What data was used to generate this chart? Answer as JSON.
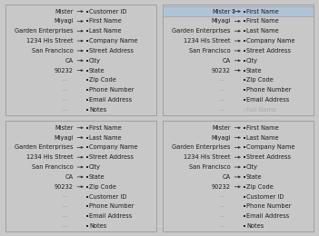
{
  "bg_color": "#c8c8c8",
  "panel_bg": "#ffffff",
  "panel_border": "#999999",
  "panels": [
    {
      "id": "top_left",
      "highlight_row": null,
      "left_fields": [
        "Mister",
        "Miyagi",
        "Garden Enterprises",
        "1234 His Street",
        "San Francisco",
        "CA",
        "90232",
        "—",
        "—",
        "—",
        "—"
      ],
      "left_active": [
        true,
        true,
        true,
        true,
        true,
        true,
        true,
        false,
        false,
        false,
        false
      ],
      "right_fields": [
        "Customer ID",
        "First Name",
        "Last Name",
        "Company Name",
        "Street Address",
        "City",
        "State",
        "Zip Code",
        "Phone Number",
        "Email Address",
        "Notes"
      ],
      "right_active": [
        true,
        true,
        true,
        true,
        true,
        true,
        true,
        true,
        true,
        true,
        true
      ],
      "arrows": [
        true,
        true,
        true,
        true,
        true,
        true,
        true,
        false,
        false,
        false,
        false
      ]
    },
    {
      "id": "top_right",
      "highlight_row": 0,
      "left_fields": [
        "Mister",
        "Miyagi",
        "Garden Enterprises",
        "1234 His Street",
        "San Francisco",
        "CA",
        "90232",
        "—",
        "—",
        "—",
        "—"
      ],
      "left_active": [
        true,
        true,
        true,
        true,
        true,
        true,
        true,
        false,
        false,
        false,
        false
      ],
      "right_fields": [
        "First Name",
        "First Name",
        "Last Name",
        "Company Name",
        "Street Address",
        "City",
        "State",
        "Zip Code",
        "Phone Number",
        "Email Address",
        "Full Name"
      ],
      "right_active": [
        true,
        true,
        true,
        true,
        true,
        true,
        true,
        true,
        true,
        true,
        false
      ],
      "arrows": [
        true,
        true,
        true,
        true,
        true,
        true,
        true,
        false,
        false,
        false,
        false
      ]
    },
    {
      "id": "bottom_left",
      "highlight_row": null,
      "left_fields": [
        "Mister",
        "Miyagi",
        "Garden Enterprises",
        "1234 His Street",
        "San Francisco",
        "CA",
        "90232",
        "—",
        "—",
        "—",
        "—"
      ],
      "left_active": [
        true,
        true,
        true,
        true,
        true,
        true,
        true,
        false,
        false,
        false,
        false
      ],
      "right_fields": [
        "First Name",
        "Last Name",
        "Company Name",
        "Street Address",
        "City",
        "State",
        "Zip Code",
        "Customer ID",
        "Phone Number",
        "Email Address",
        "Notes"
      ],
      "right_active": [
        true,
        true,
        true,
        true,
        true,
        true,
        true,
        true,
        true,
        true,
        true
      ],
      "arrows": [
        true,
        true,
        true,
        true,
        true,
        true,
        false,
        false,
        false,
        false,
        false
      ]
    },
    {
      "id": "bottom_right",
      "highlight_row": null,
      "left_fields": [
        "Mister",
        "Miyagi",
        "Garden Enterprises",
        "1234 His Street",
        "San Francisco",
        "CA",
        "90232",
        "—",
        "—",
        "—",
        "—"
      ],
      "left_active": [
        true,
        true,
        true,
        true,
        true,
        true,
        true,
        false,
        false,
        false,
        false
      ],
      "right_fields": [
        "First Name",
        "Last Name",
        "Company Name",
        "Street Address",
        "City",
        "State",
        "Zip Code",
        "Customer ID",
        "Phone Number",
        "Email Address",
        "Notes"
      ],
      "right_active": [
        true,
        true,
        true,
        true,
        true,
        true,
        true,
        true,
        true,
        true,
        true
      ],
      "arrows": [
        true,
        true,
        true,
        true,
        true,
        true,
        true,
        false,
        false,
        false,
        false
      ]
    }
  ],
  "text_color": "#1a1a1a",
  "text_color_dim": "#aaaaaa",
  "arrow_color": "#333333",
  "dot_color_active": "#222222",
  "dot_color_inactive": "#bbbbbb",
  "header_bg": "#b0c4d8",
  "header_text_bg": "#7090b0",
  "font_size": 4.8,
  "n_rows": 11
}
